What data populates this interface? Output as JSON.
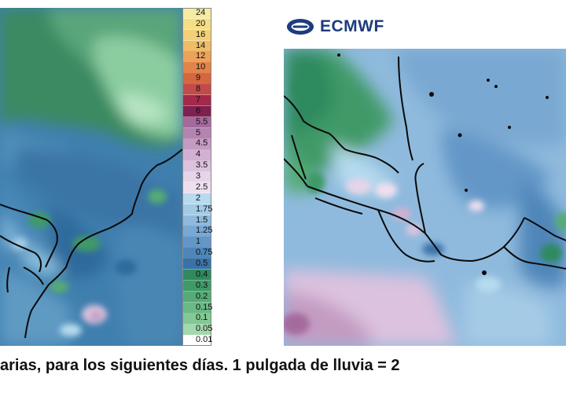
{
  "colorbar": {
    "levels": [
      "24",
      "20",
      "16",
      "14",
      "12",
      "10",
      "9",
      "8",
      "7",
      "6",
      "5.5",
      "5",
      "4.5",
      "4",
      "3.5",
      "3",
      "2.5",
      "2",
      "1.75",
      "1.5",
      "1.25",
      "1",
      "0.75",
      "0.5",
      "0.4",
      "0.3",
      "0.2",
      "0.15",
      "0.1",
      "0.05",
      "0.01"
    ],
    "colors": [
      "#f6eca0",
      "#f4df88",
      "#f3cf78",
      "#efbd68",
      "#eba25a",
      "#e2844a",
      "#d56640",
      "#c24a4a",
      "#a3284a",
      "#7e2050",
      "#a46a9c",
      "#b484b0",
      "#c49bc2",
      "#d2b0d3",
      "#dcc2de",
      "#e6d4e8",
      "#eedfef",
      "#b6dbee",
      "#a4cbe6",
      "#8fbadd",
      "#79a8d2",
      "#6497c7",
      "#4f86b9",
      "#3a72a8",
      "#2f8a5e",
      "#3f9a68",
      "#55ab76",
      "#6bba86",
      "#84c895",
      "#a3d8ae",
      "#ffffff"
    ]
  },
  "logo": {
    "text": "ECMWF",
    "icon": "ecmwf-logo-icon"
  },
  "caption": {
    "text": "arias, para los siguientes días.  1 pulgada de  lluvia = 2"
  }
}
